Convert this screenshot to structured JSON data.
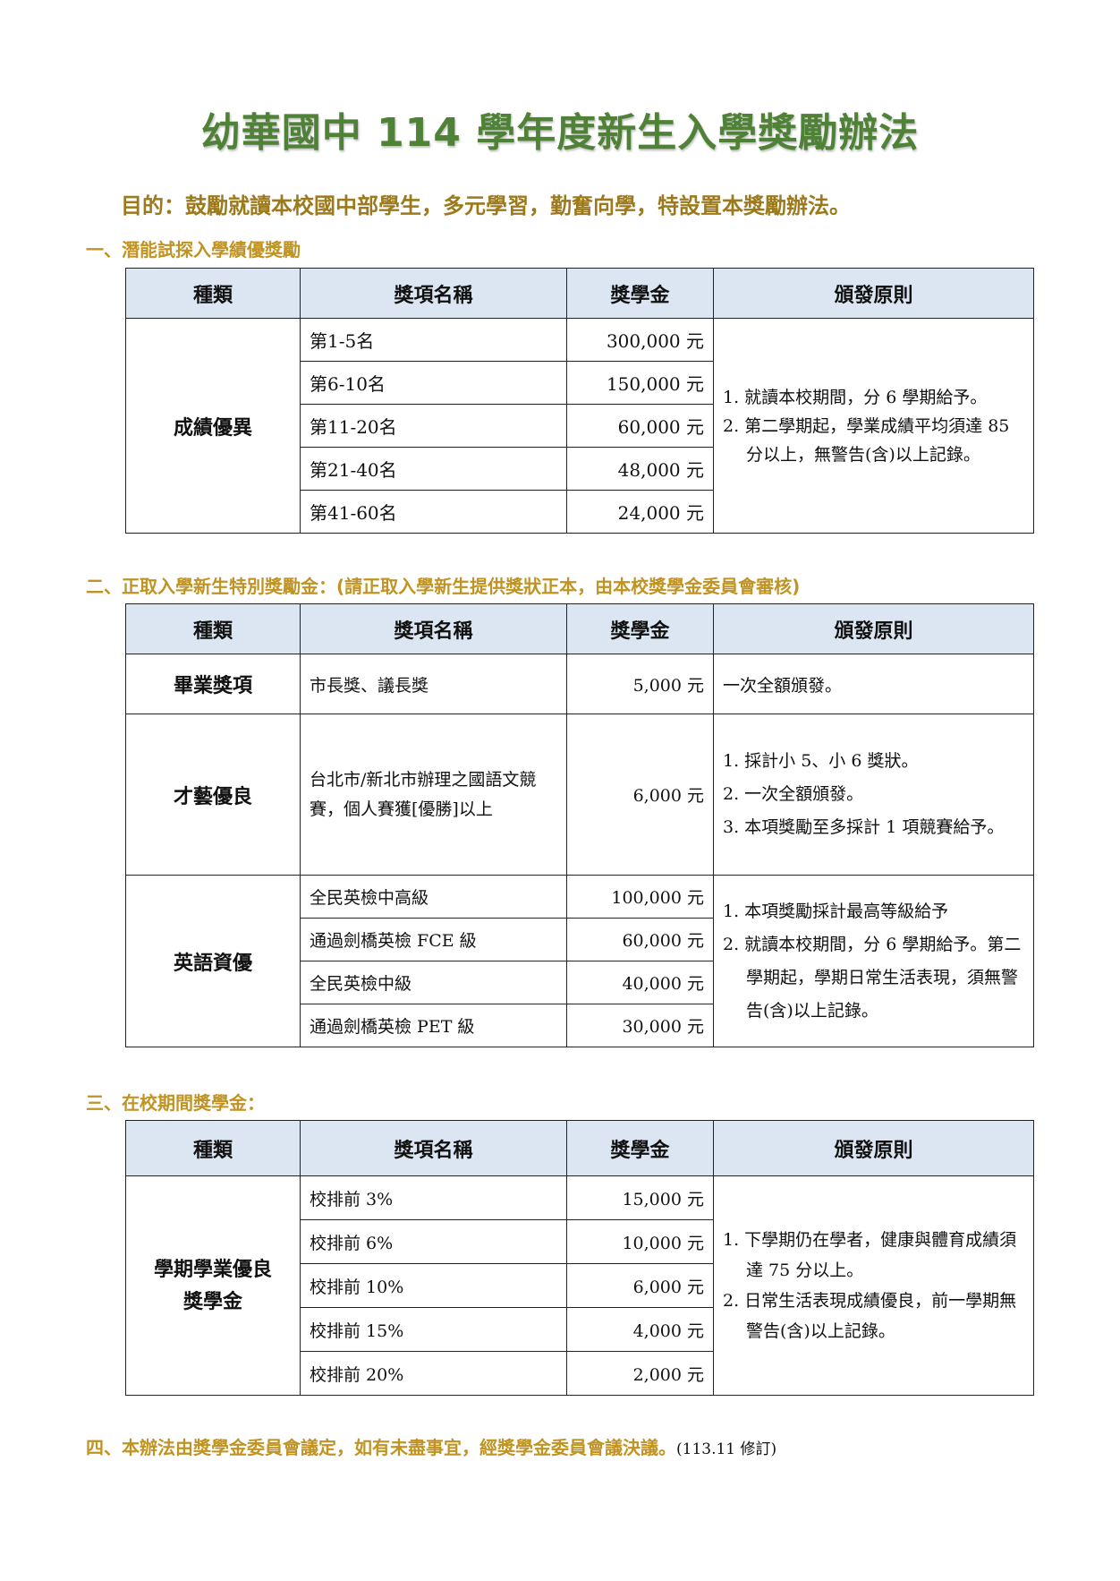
{
  "title": "幼華國中 114 學年度新生入學獎勵辦法",
  "purpose": "目的：鼓勵就讀本校國中部學生，多元學習，勤奮向學，特設置本獎勵辦法。",
  "headers": {
    "category": "種類",
    "item": "獎項名稱",
    "amount": "獎學金",
    "rule": "頒發原則"
  },
  "section1": {
    "heading": "一、潛能試探入學績優獎勵",
    "category": "成績優異",
    "rows": [
      {
        "item": "第1-5名",
        "amount": "300,000 元"
      },
      {
        "item": "第6-10名",
        "amount": "150,000 元"
      },
      {
        "item": "第11-20名",
        "amount": "60,000 元"
      },
      {
        "item": "第21-40名",
        "amount": "48,000 元"
      },
      {
        "item": "第41-60名",
        "amount": "24,000 元"
      }
    ],
    "rules": [
      "1. 就讀本校期間，分 6 學期給予。",
      "2. 第二學期起，學業成績平均須達 85 分以上，無警告(含)以上記錄。"
    ]
  },
  "section2": {
    "heading": "二、正取入學新生特別獎勵金：(請正取入學新生提供獎狀正本，由本校獎學金委員會審核)",
    "graduation": {
      "category": "畢業獎項",
      "item": "市長獎、議長獎",
      "amount": "5,000 元",
      "rule": "一次全額頒發。"
    },
    "talent": {
      "category": "才藝優良",
      "item": "台北市/新北市辦理之國語文競賽，個人賽獲[優勝]以上",
      "amount": "6,000 元",
      "rules": [
        "1. 採計小 5、小 6 獎狀。",
        "2. 一次全額頒發。",
        "3. 本項獎勵至多採計 1 項競賽給予。"
      ]
    },
    "english": {
      "category": "英語資優",
      "rows": [
        {
          "item": "全民英檢中高級",
          "amount": "100,000 元"
        },
        {
          "item": "通過劍橋英檢 FCE 級",
          "amount": "60,000 元"
        },
        {
          "item": "全民英檢中級",
          "amount": "40,000 元"
        },
        {
          "item": "通過劍橋英檢 PET 級",
          "amount": "30,000 元"
        }
      ],
      "rules": [
        "1. 本項獎勵採計最高等級給予",
        "2. 就讀本校期間，分 6 學期給予。第二學期起，學期日常生活表現，須無警告(含)以上記錄。"
      ]
    }
  },
  "section3": {
    "heading": "三、在校期間獎學金：",
    "category": "學期學業優良獎學金",
    "rows": [
      {
        "item": "校排前 3%",
        "amount": "15,000 元"
      },
      {
        "item": "校排前 6%",
        "amount": "10,000 元"
      },
      {
        "item": "校排前 10%",
        "amount": "6,000 元"
      },
      {
        "item": "校排前 15%",
        "amount": "4,000 元"
      },
      {
        "item": "校排前 20%",
        "amount": "2,000 元"
      }
    ],
    "rules": [
      "1. 下學期仍在學者，健康與體育成績須達 75 分以上。",
      "2. 日常生活表現成績優良，前一學期無警告(含)以上記錄。"
    ]
  },
  "section4": {
    "text": "四、本辦法由獎學金委員會議定，如有未盡事宜，經獎學金委員會議決議。",
    "note": "(113.11 修訂)"
  },
  "colors": {
    "title": "#4f8236",
    "heading": "#c09322",
    "table_header": "#dce6f2"
  }
}
